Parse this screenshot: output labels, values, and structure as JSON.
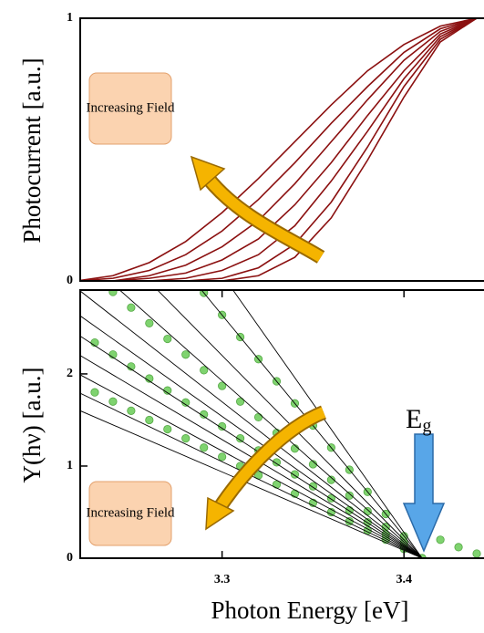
{
  "chart_data": [
    {
      "type": "line",
      "ylabel": "Photocurrent [a.u.]",
      "annotation": "Increasing Field",
      "xlim": [
        3.222,
        3.444
      ],
      "ylim": [
        0,
        1
      ],
      "yticks": [
        0,
        1
      ],
      "color": "#8b1010",
      "x": [
        3.22,
        3.24,
        3.26,
        3.28,
        3.3,
        3.32,
        3.34,
        3.36,
        3.38,
        3.4,
        3.42,
        3.44
      ],
      "series": [
        {
          "values": [
            0,
            0.02,
            0.07,
            0.15,
            0.26,
            0.39,
            0.53,
            0.67,
            0.8,
            0.9,
            0.97,
            1
          ]
        },
        {
          "values": [
            0,
            0.01,
            0.04,
            0.1,
            0.19,
            0.31,
            0.45,
            0.6,
            0.74,
            0.87,
            0.96,
            1
          ]
        },
        {
          "values": [
            0,
            0,
            0.02,
            0.06,
            0.13,
            0.23,
            0.37,
            0.53,
            0.69,
            0.84,
            0.95,
            1
          ]
        },
        {
          "values": [
            0,
            0,
            0.01,
            0.03,
            0.08,
            0.16,
            0.29,
            0.45,
            0.63,
            0.8,
            0.94,
            1
          ]
        },
        {
          "values": [
            0,
            0,
            0,
            0.01,
            0.04,
            0.1,
            0.21,
            0.38,
            0.57,
            0.77,
            0.93,
            1
          ]
        },
        {
          "values": [
            0,
            0,
            0,
            0,
            0.01,
            0.05,
            0.14,
            0.3,
            0.51,
            0.74,
            0.92,
            1
          ]
        },
        {
          "values": [
            0,
            0,
            0,
            0,
            0,
            0.02,
            0.09,
            0.24,
            0.46,
            0.7,
            0.91,
            1
          ]
        }
      ]
    },
    {
      "type": "scatter",
      "ylabel": "Y(hν) [a.u.]",
      "xlabel": "Photon Energy [eV]",
      "annotation": "Increasing Field",
      "marker": {
        "main": "E",
        "sub": "g"
      },
      "xlim": [
        3.222,
        3.444
      ],
      "ylim": [
        0,
        2.91
      ],
      "xticks": [
        3.3,
        3.4
      ],
      "yticks": [
        0,
        1,
        2
      ],
      "color": "#7fd36f",
      "fit_color": "#000000",
      "series": [
        {
          "x": [
            3.23,
            3.24,
            3.25,
            3.26,
            3.27,
            3.28,
            3.29,
            3.3,
            3.31,
            3.32,
            3.33,
            3.34,
            3.35,
            3.36,
            3.37,
            3.38,
            3.39,
            3.4,
            3.41
          ],
          "values": [
            1.8,
            1.7,
            1.6,
            1.5,
            1.4,
            1.3,
            1.2,
            1.1,
            1.0,
            0.9,
            0.8,
            0.7,
            0.6,
            0.5,
            0.4,
            0.3,
            0.2,
            0.1,
            0
          ]
        },
        {
          "x": [
            3.23,
            3.24,
            3.25,
            3.26,
            3.27,
            3.28,
            3.29,
            3.3,
            3.31,
            3.32,
            3.33,
            3.34,
            3.35,
            3.36,
            3.37,
            3.38,
            3.39,
            3.4,
            3.41
          ],
          "values": [
            2.34,
            2.21,
            2.08,
            1.95,
            1.82,
            1.69,
            1.56,
            1.43,
            1.3,
            1.17,
            1.04,
            0.91,
            0.78,
            0.65,
            0.52,
            0.39,
            0.26,
            0.13,
            0
          ]
        },
        {
          "x": [
            3.24,
            3.25,
            3.26,
            3.27,
            3.28,
            3.29,
            3.3,
            3.31,
            3.32,
            3.33,
            3.34,
            3.35,
            3.36,
            3.37,
            3.38,
            3.39,
            3.4,
            3.41
          ],
          "values": [
            2.89,
            2.72,
            2.55,
            2.38,
            2.21,
            2.04,
            1.87,
            1.7,
            1.53,
            1.36,
            1.19,
            1.02,
            0.85,
            0.68,
            0.51,
            0.34,
            0.17,
            0
          ]
        },
        {
          "x": [
            3.29,
            3.3,
            3.31,
            3.32,
            3.33,
            3.34,
            3.35,
            3.36,
            3.37,
            3.38,
            3.39,
            3.4,
            3.41
          ],
          "values": [
            2.88,
            2.64,
            2.4,
            2.16,
            1.92,
            1.68,
            1.44,
            1.2,
            0.96,
            0.72,
            0.48,
            0.24,
            0
          ]
        },
        {
          "x": [
            3.42,
            3.43,
            3.44
          ],
          "values": [
            0.2,
            0.12,
            0.05
          ]
        }
      ],
      "fits": [
        {
          "x": [
            3.222,
            3.41
          ],
          "values": [
            1.6,
            0
          ]
        },
        {
          "x": [
            3.222,
            3.41
          ],
          "values": [
            1.79,
            0
          ]
        },
        {
          "x": [
            3.222,
            3.41
          ],
          "values": [
            1.99,
            0
          ]
        },
        {
          "x": [
            3.222,
            3.41
          ],
          "values": [
            2.2,
            0
          ]
        },
        {
          "x": [
            3.222,
            3.41
          ],
          "values": [
            2.41,
            0
          ]
        },
        {
          "x": [
            3.222,
            3.41
          ],
          "values": [
            2.63,
            0
          ]
        },
        {
          "x": [
            3.222,
            3.41
          ],
          "values": [
            2.9,
            0
          ]
        },
        {
          "x": [
            3.222,
            3.41
          ],
          "values": [
            3.29,
            0
          ]
        },
        {
          "x": [
            3.222,
            3.41
          ],
          "values": [
            3.76,
            0
          ]
        },
        {
          "x": [
            3.222,
            3.41
          ],
          "values": [
            4.51,
            0
          ]
        },
        {
          "x": [
            3.222,
            3.41
          ],
          "values": [
            5.26,
            0
          ]
        }
      ]
    }
  ]
}
